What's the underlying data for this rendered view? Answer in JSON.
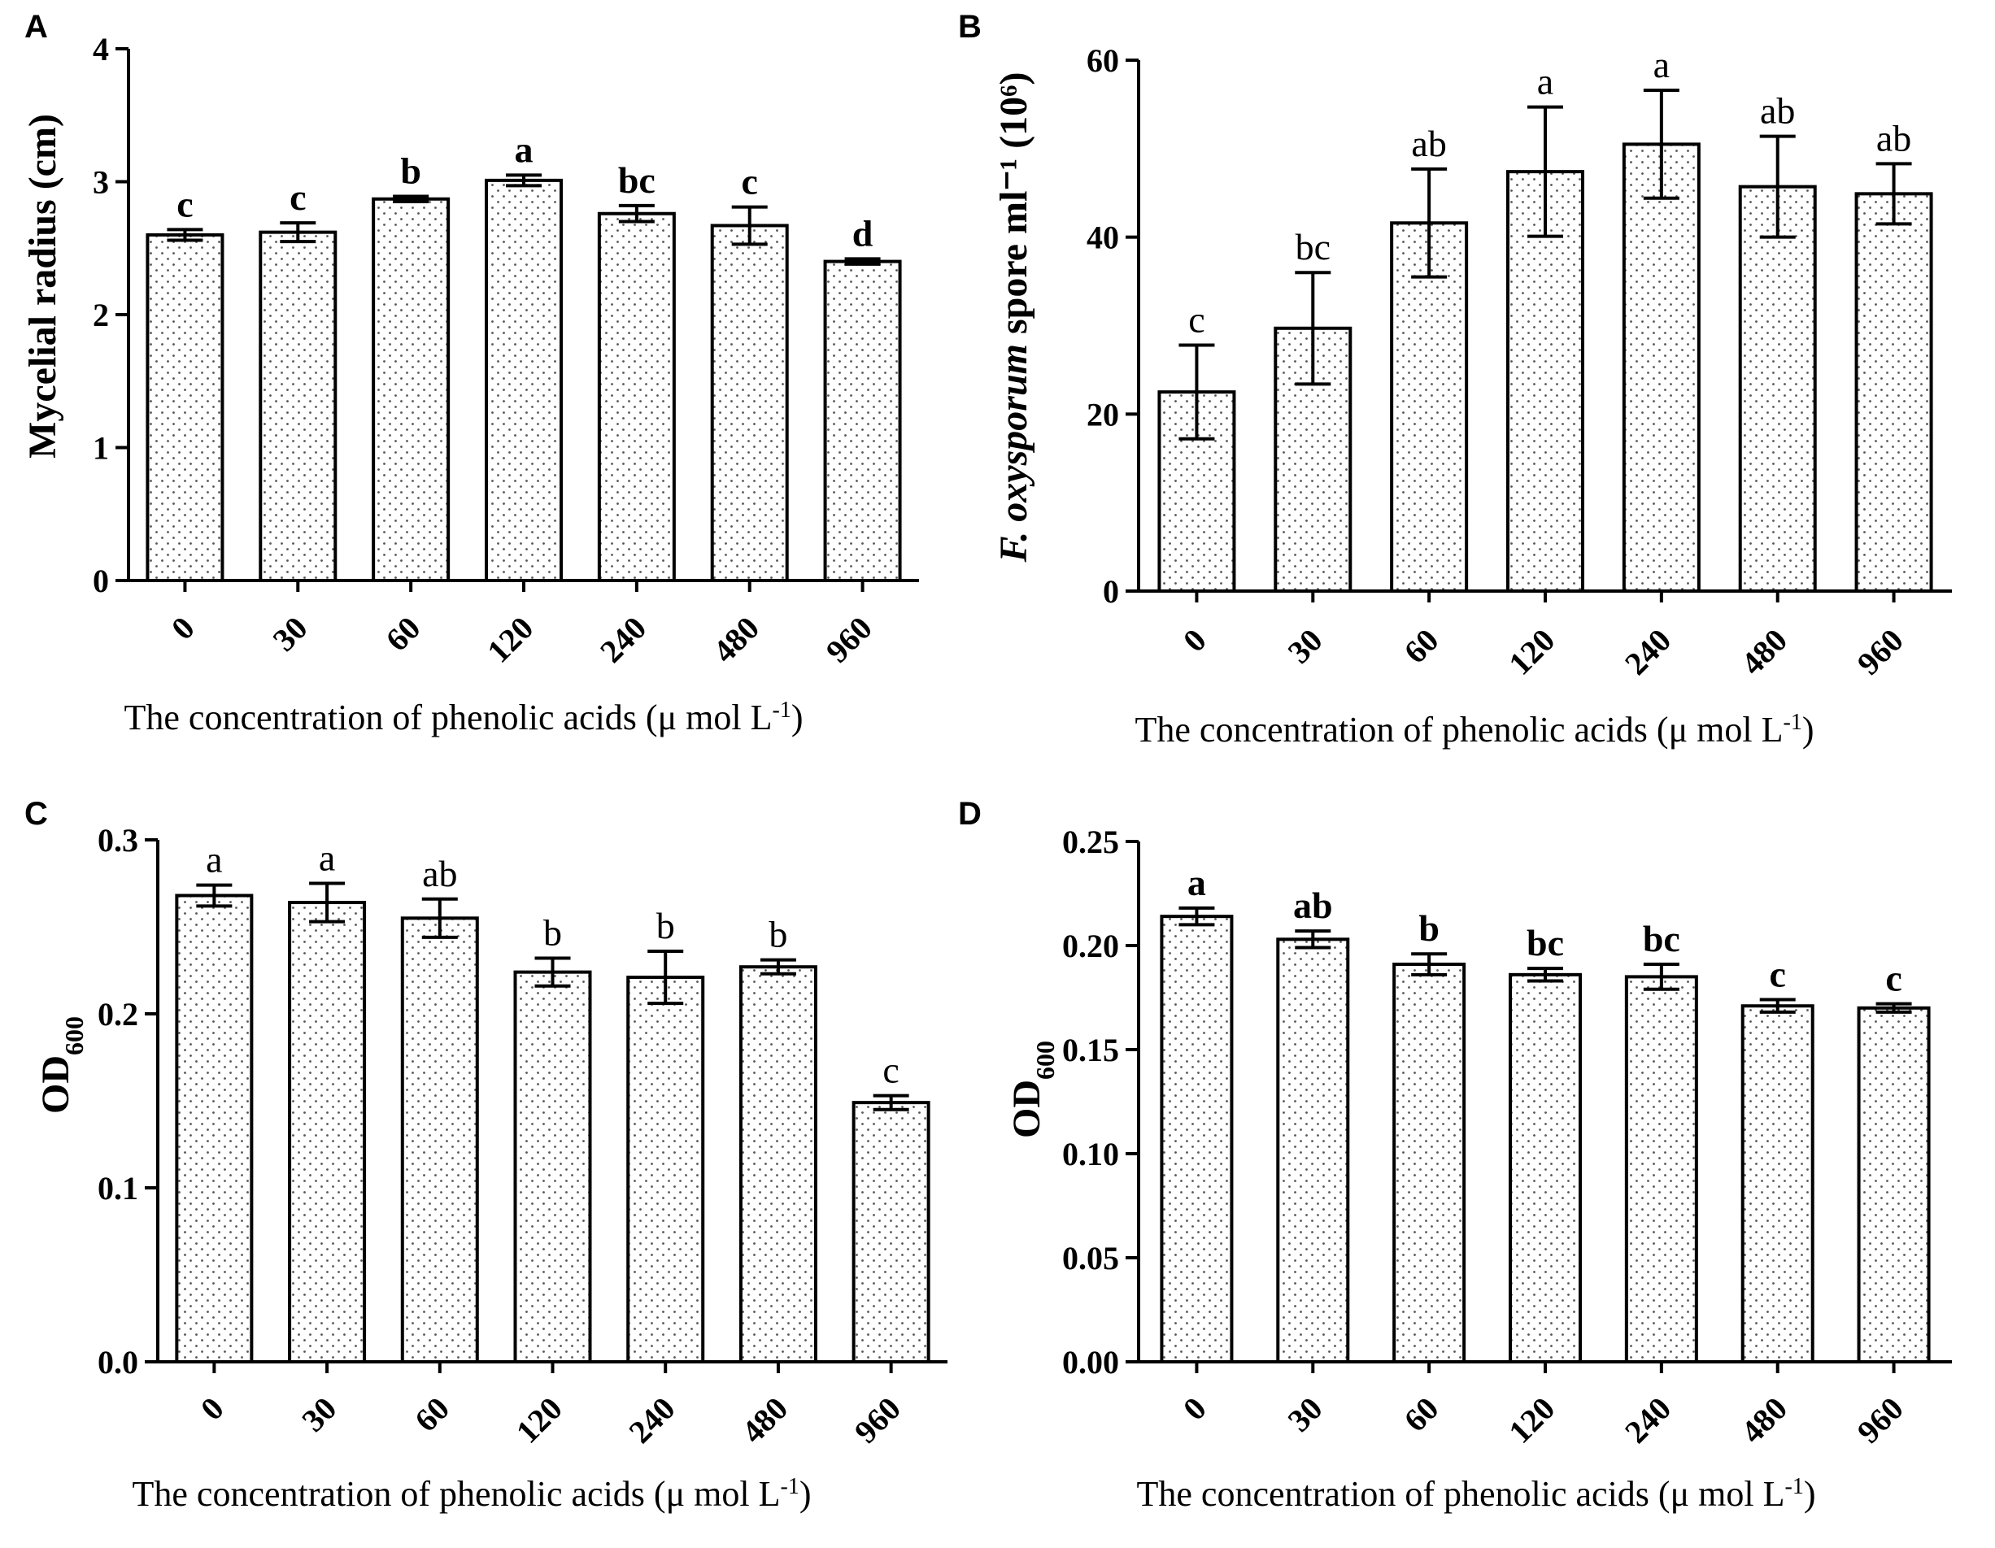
{
  "chart_data": [
    {
      "panel": "A",
      "type": "bar",
      "categories": [
        "0",
        "30",
        "60",
        "120",
        "240",
        "480",
        "960"
      ],
      "values": [
        2.6,
        2.62,
        2.87,
        3.01,
        2.76,
        2.67,
        2.4
      ],
      "errors": [
        0.04,
        0.07,
        0.02,
        0.04,
        0.06,
        0.14,
        0.02
      ],
      "significance": [
        "c",
        "c",
        "b",
        "a",
        "bc",
        "c",
        "d"
      ],
      "title": "",
      "xlabel": "The concentration of phenolic acids (μ mol L⁻¹)",
      "ylabel": "Mycelial radius (cm)",
      "ylim": [
        0,
        4
      ],
      "yticks": [
        "0",
        "1",
        "2",
        "3",
        "4"
      ]
    },
    {
      "panel": "B",
      "type": "bar",
      "categories": [
        "0",
        "30",
        "60",
        "120",
        "240",
        "480",
        "960"
      ],
      "values": [
        22.5,
        29.7,
        41.6,
        47.4,
        50.5,
        45.7,
        44.9
      ],
      "errors": [
        5.3,
        6.3,
        6.1,
        7.3,
        6.1,
        5.7,
        3.4
      ],
      "significance": [
        "c",
        "bc",
        "ab",
        "a",
        "a",
        "ab",
        "ab"
      ],
      "title": "",
      "xlabel": "The concentration of phenolic acids (μ mol L⁻¹)",
      "ylabel_italic": "F. oxysporum",
      "ylabel_rest": " spore ml⁻¹ (10⁶)",
      "ylim": [
        0,
        60
      ],
      "yticks": [
        "0",
        "20",
        "40",
        "60"
      ]
    },
    {
      "panel": "C",
      "type": "bar",
      "categories": [
        "0",
        "30",
        "60",
        "120",
        "240",
        "480",
        "960"
      ],
      "values": [
        0.268,
        0.264,
        0.255,
        0.224,
        0.221,
        0.227,
        0.149
      ],
      "errors": [
        0.006,
        0.011,
        0.011,
        0.008,
        0.015,
        0.004,
        0.004
      ],
      "significance": [
        "a",
        "a",
        "ab",
        "b",
        "b",
        "b",
        "c"
      ],
      "title": "",
      "xlabel": "The concentration of phenolic acids (μ mol L⁻¹)",
      "ylabel": "OD600",
      "ylim": [
        0,
        0.3
      ],
      "yticks": [
        "0.0",
        "0.1",
        "0.2",
        "0.3"
      ]
    },
    {
      "panel": "D",
      "type": "bar",
      "categories": [
        "0",
        "30",
        "60",
        "120",
        "240",
        "480",
        "960"
      ],
      "values": [
        0.214,
        0.203,
        0.191,
        0.186,
        0.185,
        0.171,
        0.17
      ],
      "errors": [
        0.004,
        0.004,
        0.005,
        0.003,
        0.006,
        0.003,
        0.002
      ],
      "significance": [
        "a",
        "ab",
        "b",
        "bc",
        "bc",
        "c",
        "c"
      ],
      "title": "",
      "xlabel": "The concentration of phenolic acids (μ mol L⁻¹)",
      "ylabel": "OD600",
      "ylim": [
        0,
        0.25
      ],
      "yticks": [
        "0.00",
        "0.05",
        "0.10",
        "0.15",
        "0.20",
        "0.25"
      ]
    }
  ]
}
